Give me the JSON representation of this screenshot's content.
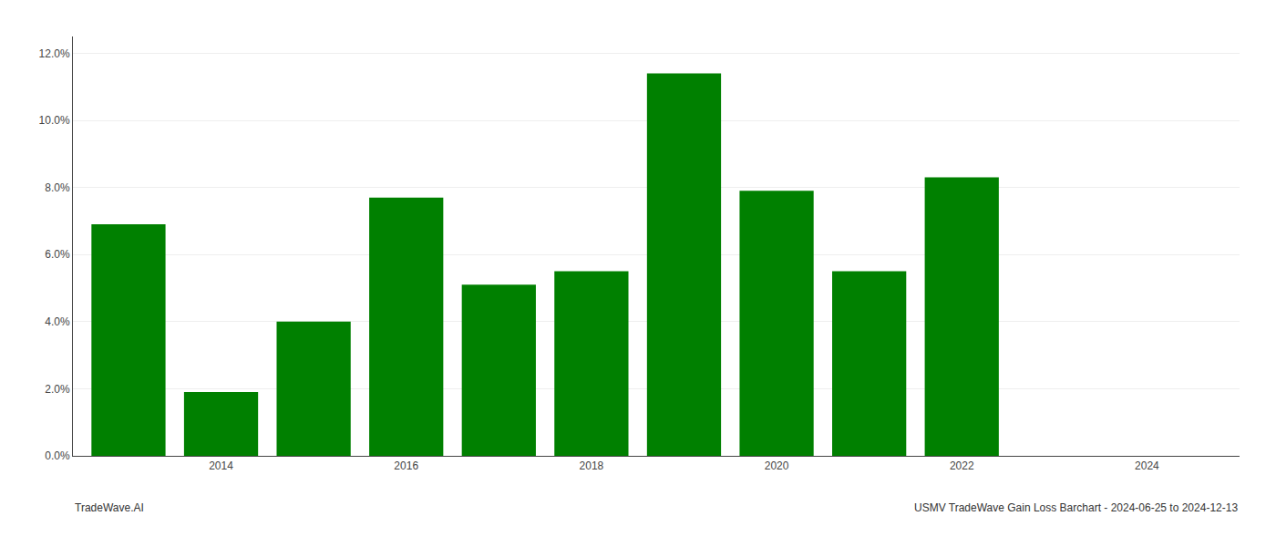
{
  "chart_data": {
    "type": "bar",
    "x": [
      2013,
      2014,
      2015,
      2016,
      2017,
      2018,
      2019,
      2020,
      2021,
      2022
    ],
    "values": [
      0.069,
      0.019,
      0.04,
      0.077,
      0.051,
      0.055,
      0.114,
      0.079,
      0.055,
      0.083
    ],
    "color": "#008000",
    "xlim": [
      2012.4,
      2025.0
    ],
    "xticks": [
      2014,
      2016,
      2018,
      2020,
      2022,
      2024
    ],
    "ylim": [
      0,
      0.125
    ],
    "yticks": [
      {
        "value": 0.0,
        "label": "0.0%"
      },
      {
        "value": 0.02,
        "label": "2.0%"
      },
      {
        "value": 0.04,
        "label": "4.0%"
      },
      {
        "value": 0.06,
        "label": "6.0%"
      },
      {
        "value": 0.08,
        "label": "8.0%"
      },
      {
        "value": 0.1,
        "label": "10.0%"
      },
      {
        "value": 0.12,
        "label": "12.0%"
      }
    ],
    "grid": true,
    "annotations": [
      "TradeWave.AI",
      "USMV TradeWave Gain Loss Barchart - 2024-06-25 to 2024-12-13"
    ]
  }
}
